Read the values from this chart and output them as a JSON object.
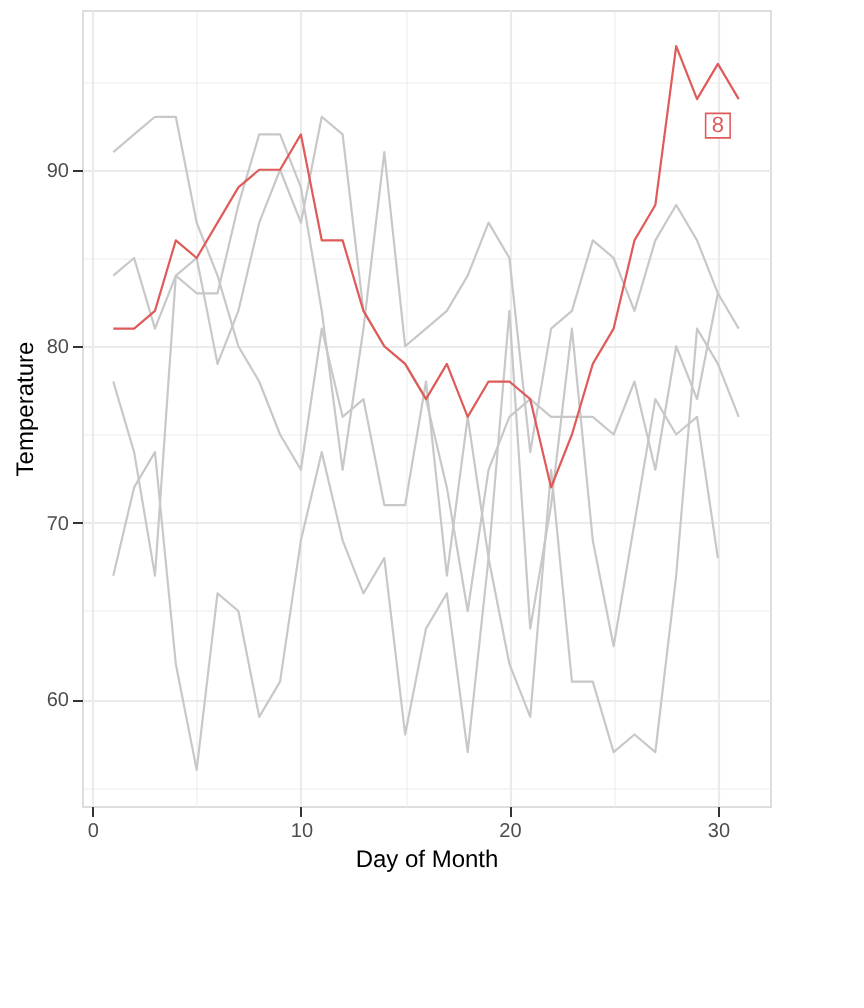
{
  "chart_data": {
    "type": "line",
    "xlabel": "Day of Month",
    "ylabel": "Temperature",
    "x": [
      1,
      2,
      3,
      4,
      5,
      6,
      7,
      8,
      9,
      10,
      11,
      12,
      13,
      14,
      15,
      16,
      17,
      18,
      19,
      20,
      21,
      22,
      23,
      24,
      25,
      26,
      27,
      28,
      29,
      30,
      31
    ],
    "series": [
      {
        "color": "#c8c8c8",
        "values": [
          67,
          72,
          74,
          62,
          56,
          66,
          65,
          59,
          61,
          69,
          74,
          69,
          66,
          68,
          58,
          64,
          66,
          57,
          68,
          62,
          59,
          73,
          61,
          61,
          57,
          58,
          57,
          67,
          81,
          79,
          76
        ]
      },
      {
        "color": "#c8c8c8",
        "values": [
          78,
          74,
          67,
          84,
          85,
          79,
          82,
          87,
          90,
          87,
          93,
          92,
          82,
          80,
          79,
          77,
          72,
          65,
          73,
          76,
          77,
          76,
          76,
          76,
          75,
          78,
          73,
          80,
          77,
          83,
          null
        ]
      },
      {
        "color": "#c8c8c8",
        "values": [
          84,
          85,
          81,
          84,
          83,
          83,
          88,
          92,
          92,
          89,
          82,
          73,
          81,
          91,
          80,
          81,
          82,
          84,
          87,
          85,
          74,
          81,
          82,
          86,
          85,
          82,
          86,
          88,
          86,
          83,
          81
        ]
      },
      {
        "color": "#c8c8c8",
        "values": [
          91,
          92,
          93,
          93,
          87,
          84,
          80,
          78,
          75,
          73,
          81,
          76,
          77,
          71,
          71,
          78,
          67,
          76,
          68,
          82,
          64,
          71,
          81,
          69,
          63,
          70,
          77,
          75,
          76,
          68,
          null
        ]
      },
      {
        "color": "#e05a5a",
        "values": [
          81,
          81,
          82,
          86,
          85,
          87,
          89,
          90,
          90,
          92,
          86,
          86,
          82,
          80,
          79,
          77,
          79,
          76,
          78,
          78,
          77,
          72,
          75,
          79,
          81,
          86,
          88,
          97,
          94,
          96,
          94
        ]
      }
    ],
    "annotations": [
      {
        "text": "8",
        "x": 30,
        "y": 92.5
      }
    ],
    "xlim": [
      -0.5,
      32.5
    ],
    "ylim": [
      53.95,
      99.05
    ],
    "xticks": [
      0,
      10,
      20,
      30,
      {
        "value": 5,
        "label": null
      },
      {
        "value": 15,
        "label": null
      },
      {
        "value": 25,
        "label": null
      }
    ],
    "yticks": [
      60,
      70,
      80,
      90,
      {
        "value": 55,
        "label": null
      },
      {
        "value": 65,
        "label": null
      },
      {
        "value": 75,
        "label": null
      },
      {
        "value": 85,
        "label": null
      },
      {
        "value": 95,
        "label": null
      }
    ],
    "grid": true,
    "marker": "none",
    "line_style": "solid"
  }
}
